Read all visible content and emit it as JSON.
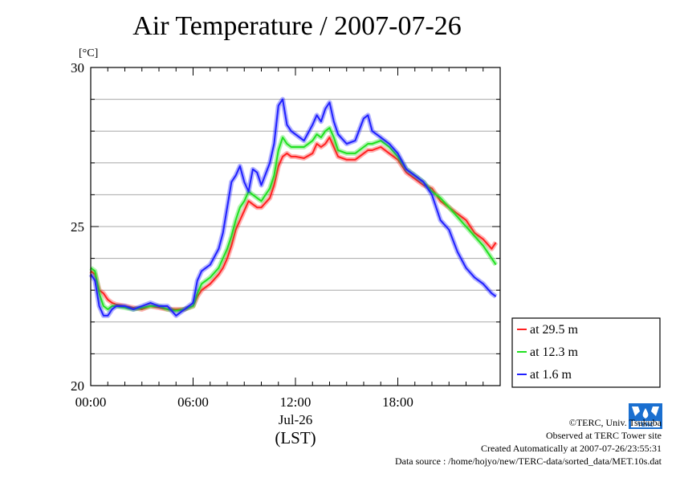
{
  "chart_data": {
    "type": "line",
    "title": "Air Temperature / 2007-07-26",
    "ylabel": "[°C]",
    "xlabel": "Jul-26",
    "xunit": "(LST)",
    "ylim": [
      20,
      30
    ],
    "xlim_hours": [
      0,
      24
    ],
    "y_ticks": [
      20,
      25,
      30
    ],
    "y_tick_labels": [
      "20",
      "25",
      "30"
    ],
    "x_ticks": [
      0,
      6,
      12,
      18
    ],
    "x_tick_labels": [
      "00:00",
      "06:00",
      "12:00",
      "18:00"
    ],
    "grid": "horizontal",
    "legend_position": "right",
    "series": [
      {
        "name": "at 29.5 m",
        "color": "#ff2020",
        "x": [
          0.0,
          0.25,
          0.5,
          0.75,
          1.0,
          1.25,
          1.5,
          2.0,
          2.5,
          3.0,
          3.5,
          4.0,
          4.5,
          5.0,
          5.5,
          6.0,
          6.25,
          6.5,
          7.0,
          7.5,
          7.75,
          8.0,
          8.25,
          8.5,
          8.75,
          9.0,
          9.25,
          9.5,
          9.75,
          10.0,
          10.5,
          10.75,
          11.0,
          11.25,
          11.5,
          11.75,
          12.0,
          12.5,
          13.0,
          13.25,
          13.5,
          13.75,
          14.0,
          14.25,
          14.5,
          15.0,
          15.5,
          16.0,
          16.25,
          16.5,
          17.0,
          17.5,
          18.0,
          18.5,
          19.0,
          19.5,
          20.0,
          20.5,
          21.0,
          21.5,
          22.0,
          22.5,
          23.0,
          23.5,
          23.75
        ],
        "y": [
          23.6,
          23.5,
          23.0,
          22.9,
          22.7,
          22.6,
          22.55,
          22.5,
          22.45,
          22.4,
          22.5,
          22.45,
          22.4,
          22.4,
          22.4,
          22.5,
          22.8,
          23.0,
          23.2,
          23.5,
          23.7,
          24.0,
          24.4,
          24.9,
          25.2,
          25.5,
          25.8,
          25.7,
          25.6,
          25.6,
          25.9,
          26.3,
          26.9,
          27.2,
          27.3,
          27.2,
          27.2,
          27.15,
          27.3,
          27.6,
          27.5,
          27.6,
          27.8,
          27.5,
          27.2,
          27.1,
          27.1,
          27.3,
          27.4,
          27.4,
          27.5,
          27.3,
          27.1,
          26.7,
          26.5,
          26.3,
          26.2,
          25.8,
          25.6,
          25.4,
          25.2,
          24.8,
          24.6,
          24.3,
          24.5
        ]
      },
      {
        "name": "at 12.3 m",
        "color": "#20e020",
        "x": [
          0.0,
          0.25,
          0.5,
          0.75,
          1.0,
          1.25,
          1.5,
          2.0,
          2.5,
          3.0,
          3.5,
          4.0,
          4.5,
          5.0,
          5.5,
          6.0,
          6.25,
          6.5,
          7.0,
          7.5,
          7.75,
          8.0,
          8.25,
          8.5,
          8.75,
          9.0,
          9.25,
          9.5,
          9.75,
          10.0,
          10.5,
          10.75,
          11.0,
          11.25,
          11.5,
          11.75,
          12.0,
          12.5,
          13.0,
          13.25,
          13.5,
          13.75,
          14.0,
          14.25,
          14.5,
          15.0,
          15.5,
          16.0,
          16.25,
          16.5,
          17.0,
          17.5,
          18.0,
          18.5,
          19.0,
          19.5,
          20.0,
          20.5,
          21.0,
          21.5,
          22.0,
          22.5,
          23.0,
          23.5,
          23.75
        ],
        "y": [
          23.7,
          23.6,
          22.9,
          22.5,
          22.4,
          22.5,
          22.5,
          22.45,
          22.4,
          22.45,
          22.5,
          22.5,
          22.4,
          22.35,
          22.4,
          22.5,
          22.9,
          23.2,
          23.4,
          23.7,
          24.0,
          24.3,
          24.7,
          25.2,
          25.6,
          25.8,
          26.1,
          26.0,
          25.9,
          25.8,
          26.2,
          26.6,
          27.4,
          27.8,
          27.6,
          27.5,
          27.5,
          27.5,
          27.7,
          27.9,
          27.8,
          28.0,
          28.1,
          27.8,
          27.4,
          27.3,
          27.3,
          27.5,
          27.6,
          27.6,
          27.7,
          27.5,
          27.2,
          26.8,
          26.6,
          26.4,
          26.1,
          25.9,
          25.6,
          25.3,
          25.0,
          24.7,
          24.4,
          24.0,
          23.8
        ]
      },
      {
        "name": "at 1.6 m",
        "color": "#2020ff",
        "x": [
          0.0,
          0.25,
          0.5,
          0.75,
          1.0,
          1.25,
          1.5,
          2.0,
          2.5,
          3.0,
          3.5,
          4.0,
          4.5,
          5.0,
          5.5,
          6.0,
          6.25,
          6.5,
          7.0,
          7.5,
          7.75,
          8.0,
          8.25,
          8.5,
          8.75,
          9.0,
          9.25,
          9.5,
          9.75,
          10.0,
          10.5,
          10.75,
          11.0,
          11.25,
          11.5,
          11.75,
          12.0,
          12.5,
          13.0,
          13.25,
          13.5,
          13.75,
          14.0,
          14.25,
          14.5,
          15.0,
          15.5,
          16.0,
          16.25,
          16.5,
          17.0,
          17.5,
          18.0,
          18.5,
          19.0,
          19.5,
          20.0,
          20.5,
          21.0,
          21.5,
          22.0,
          22.5,
          23.0,
          23.5,
          23.75
        ],
        "y": [
          23.5,
          23.3,
          22.5,
          22.2,
          22.2,
          22.4,
          22.5,
          22.5,
          22.4,
          22.5,
          22.6,
          22.5,
          22.5,
          22.2,
          22.4,
          22.6,
          23.3,
          23.6,
          23.8,
          24.3,
          24.8,
          25.6,
          26.4,
          26.6,
          26.9,
          26.4,
          26.1,
          26.8,
          26.7,
          26.3,
          27.0,
          27.6,
          28.8,
          29.0,
          28.2,
          28.0,
          27.9,
          27.7,
          28.2,
          28.5,
          28.3,
          28.7,
          28.9,
          28.3,
          27.9,
          27.6,
          27.7,
          28.4,
          28.5,
          28.0,
          27.8,
          27.6,
          27.3,
          26.8,
          26.6,
          26.4,
          26.0,
          25.2,
          24.9,
          24.2,
          23.7,
          23.4,
          23.2,
          22.9,
          22.8
        ]
      }
    ]
  },
  "credits": {
    "copyright": "©TERC, Univ. Tsukuba",
    "observed": "Observed at TERC Tower site",
    "created": "Created Automatically at 2007-07-26/23:55:31",
    "source": "Data source : /home/hojyo/new/TERC-data/sorted_data/MET.10s.dat",
    "logo_text": "TERC"
  }
}
